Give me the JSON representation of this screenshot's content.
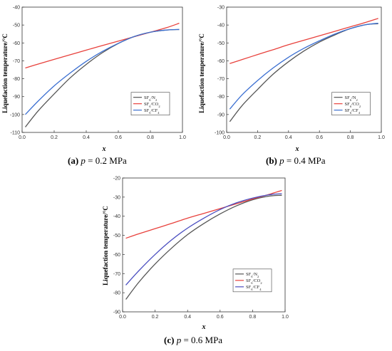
{
  "chart_data": [
    {
      "type": "line",
      "caption": {
        "label": "(a)",
        "param": "p",
        "rest": " = 0.2 MPa"
      },
      "xlabel": "x",
      "ylabel": "Liquefaction temperature/°C",
      "xlim": [
        0.0,
        1.0
      ],
      "ylim": [
        -110,
        -40
      ],
      "xticks": [
        "0.0",
        "0.2",
        "0.4",
        "0.6",
        "0.8",
        "1.0"
      ],
      "yticks": [
        "-110",
        "-100",
        "-90",
        "-80",
        "-70",
        "-60",
        "-50",
        "-40"
      ],
      "legend_position": "lower-right",
      "x": [
        0.02,
        0.1,
        0.2,
        0.3,
        0.4,
        0.5,
        0.6,
        0.7,
        0.8,
        0.9,
        0.98
      ],
      "series": [
        {
          "name": "SF6/N2",
          "name_base": "SF",
          "name_sub": "6",
          "name_mid": "/N",
          "name_sub2": "2",
          "color": "#555555",
          "values": [
            -107,
            -98,
            -88.5,
            -79.5,
            -72,
            -65.5,
            -60.3,
            -56.4,
            -54,
            -52.8,
            -52.5
          ]
        },
        {
          "name": "SF6/CO2",
          "name_base": "SF",
          "name_sub": "6",
          "name_mid": "/CO",
          "name_sub2": "2",
          "color": "#e8413c",
          "values": [
            -74,
            -71.8,
            -69.2,
            -66.6,
            -64,
            -61.5,
            -59,
            -56.5,
            -54,
            -51.5,
            -49
          ]
        },
        {
          "name": "SF6/CF4",
          "name_base": "SF",
          "name_sub": "6",
          "name_mid": "/CF",
          "name_sub2": "4",
          "color": "#3b6fd1",
          "values": [
            -100,
            -92.5,
            -84,
            -76.8,
            -70.3,
            -64.8,
            -60.2,
            -56.4,
            -54,
            -52.8,
            -52.5
          ]
        }
      ]
    },
    {
      "type": "line",
      "caption": {
        "label": "(b)",
        "param": "p",
        "rest": " = 0.4 MPa"
      },
      "xlabel": "x",
      "ylabel": "Liquefaction temperature/°C",
      "xlim": [
        0.0,
        1.0
      ],
      "ylim": [
        -100,
        -30
      ],
      "xticks": [
        "0.0",
        "0.2",
        "0.4",
        "0.6",
        "0.8",
        "1.0"
      ],
      "yticks": [
        "-100",
        "-90",
        "-80",
        "-70",
        "-60",
        "-50",
        "-40",
        "-30"
      ],
      "legend_position": "lower-right",
      "x": [
        0.02,
        0.1,
        0.2,
        0.3,
        0.4,
        0.5,
        0.6,
        0.7,
        0.8,
        0.9,
        0.98
      ],
      "series": [
        {
          "name": "SF6/N2",
          "name_base": "SF",
          "name_sub": "6",
          "name_mid": "/N",
          "name_sub2": "2",
          "color": "#555555",
          "values": [
            -94,
            -85,
            -76,
            -67.5,
            -60.5,
            -54.5,
            -49.5,
            -45.5,
            -42,
            -39.8,
            -39.3
          ]
        },
        {
          "name": "SF6/CO2",
          "name_base": "SF",
          "name_sub": "6",
          "name_mid": "/CO",
          "name_sub2": "2",
          "color": "#e8413c",
          "values": [
            -61.5,
            -59.3,
            -56.5,
            -53.8,
            -51,
            -48.5,
            -46,
            -43.5,
            -41,
            -38.5,
            -36.3
          ]
        },
        {
          "name": "SF6/CF4",
          "name_base": "SF",
          "name_sub": "6",
          "name_mid": "/CF",
          "name_sub2": "4",
          "color": "#3b6fd1",
          "values": [
            -87,
            -79,
            -71,
            -64,
            -58,
            -53,
            -48.8,
            -45,
            -42,
            -39.8,
            -39
          ]
        }
      ]
    },
    {
      "type": "line",
      "caption": {
        "label": "(c)",
        "param": "p",
        "rest": " = 0.6 MPa"
      },
      "xlabel": "x",
      "ylabel": "Liquefaction temperature/°C",
      "xlim": [
        0.0,
        1.0
      ],
      "ylim": [
        -90,
        -20
      ],
      "xticks": [
        "0.0",
        "0.2",
        "0.4",
        "0.6",
        "0.8",
        "1.0"
      ],
      "yticks": [
        "-90",
        "-80",
        "-70",
        "-60",
        "-50",
        "-40",
        "-30",
        "-20"
      ],
      "legend_position": "lower-right",
      "x": [
        0.02,
        0.1,
        0.2,
        0.3,
        0.4,
        0.5,
        0.6,
        0.7,
        0.8,
        0.9,
        0.98
      ],
      "series": [
        {
          "name": "SF6/N2",
          "name_base": "SF",
          "name_sub": "6",
          "name_mid": "/N",
          "name_sub2": "2",
          "color": "#555555",
          "values": [
            -83.5,
            -74.5,
            -65,
            -56.8,
            -49.6,
            -43.8,
            -38.8,
            -34.6,
            -31.4,
            -29.5,
            -29
          ]
        },
        {
          "name": "SF6/CO2",
          "name_base": "SF",
          "name_sub": "6",
          "name_mid": "/CO",
          "name_sub2": "2",
          "color": "#e8413c",
          "values": [
            -51.5,
            -49.2,
            -46.5,
            -43.8,
            -41,
            -38.5,
            -36,
            -33.5,
            -31,
            -28.6,
            -26.5
          ]
        },
        {
          "name": "SF6/CF4",
          "name_base": "SF",
          "name_sub": "6",
          "name_mid": "/CF",
          "name_sub2": "4",
          "color": "#4a4ec0",
          "values": [
            -76,
            -68.5,
            -60,
            -52.5,
            -46.2,
            -41,
            -36.5,
            -33,
            -30.5,
            -28.8,
            -28.2
          ]
        }
      ]
    }
  ]
}
